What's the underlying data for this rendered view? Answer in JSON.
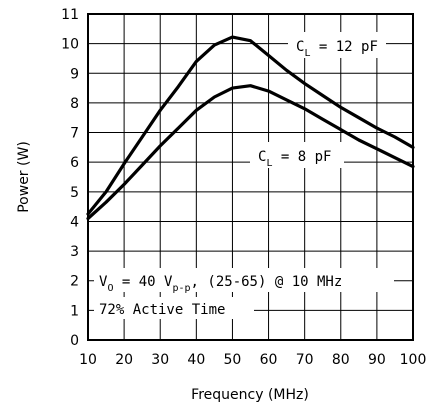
{
  "chart_data": {
    "type": "line",
    "xlabel": "Frequency (MHz)",
    "ylabel": "Power (W)",
    "xlim": [
      10,
      100
    ],
    "ylim": [
      0,
      11
    ],
    "grid": true,
    "x_ticks": [
      "10",
      "20",
      "30",
      "40",
      "50",
      "60",
      "70",
      "80",
      "90",
      "100"
    ],
    "y_ticks": [
      "0",
      "1",
      "2",
      "3",
      "4",
      "5",
      "6",
      "7",
      "8",
      "9",
      "10",
      "11"
    ],
    "series": [
      {
        "label_main": "C",
        "label_sub": "L",
        "label_rest": " = 12 pF",
        "x": [
          10,
          15,
          20,
          25,
          30,
          35,
          40,
          45,
          50,
          55,
          60,
          65,
          70,
          75,
          80,
          85,
          90,
          95,
          100
        ],
        "y": [
          4.25,
          5.0,
          5.95,
          6.85,
          7.75,
          8.55,
          9.4,
          9.95,
          10.22,
          10.1,
          9.6,
          9.1,
          8.65,
          8.25,
          7.85,
          7.5,
          7.15,
          6.85,
          6.5
        ]
      },
      {
        "label_main": "C",
        "label_sub": "L",
        "label_rest": " = 8 pF",
        "x": [
          10,
          15,
          20,
          25,
          30,
          35,
          40,
          45,
          50,
          55,
          60,
          65,
          70,
          75,
          80,
          85,
          90,
          95,
          100
        ],
        "y": [
          4.1,
          4.65,
          5.25,
          5.9,
          6.55,
          7.15,
          7.75,
          8.2,
          8.5,
          8.58,
          8.4,
          8.1,
          7.8,
          7.45,
          7.1,
          6.75,
          6.45,
          6.15,
          5.85
        ]
      }
    ],
    "annotation_line1": {
      "pre": "V",
      "sub1": "O",
      "mid": " = 40 V",
      "sub2": "p-p",
      "post": ", (25-65) @ 10 MHz"
    },
    "annotation_line2": "72% Active Time"
  }
}
